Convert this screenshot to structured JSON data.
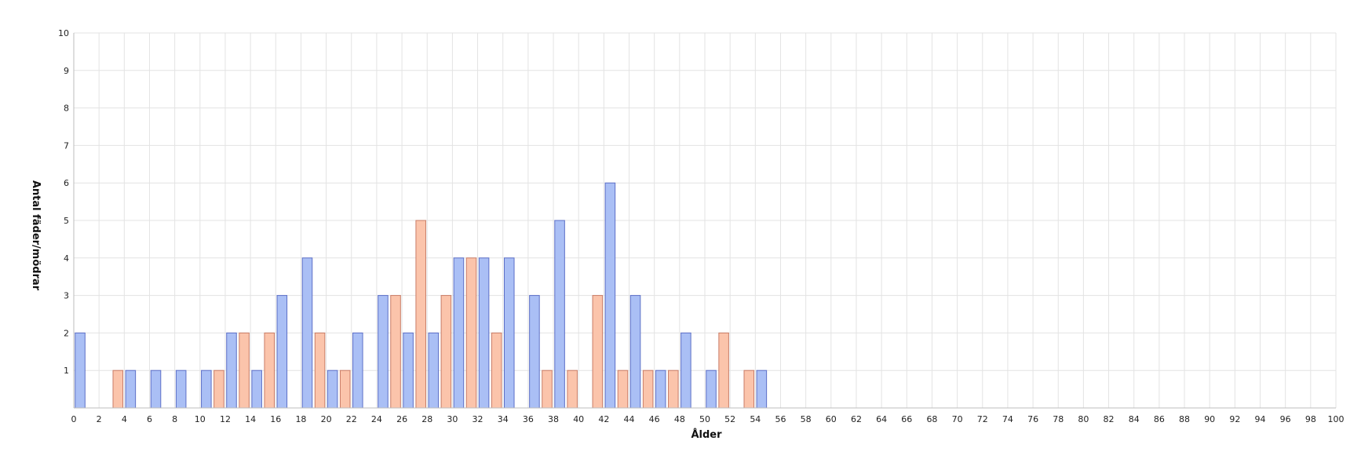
{
  "chart_data": {
    "type": "bar",
    "xlabel": "Ålder",
    "ylabel": "Antal fäder/mödrar",
    "xlim": [
      0,
      100
    ],
    "ylim": [
      0,
      10
    ],
    "x_ticks": [
      0,
      2,
      4,
      6,
      8,
      10,
      12,
      14,
      16,
      18,
      20,
      22,
      24,
      26,
      28,
      30,
      32,
      34,
      36,
      38,
      40,
      42,
      44,
      46,
      48,
      50,
      52,
      54,
      56,
      58,
      60,
      62,
      64,
      66,
      68,
      70,
      72,
      74,
      76,
      78,
      80,
      82,
      84,
      86,
      88,
      90,
      92,
      94,
      96,
      98,
      100
    ],
    "y_ticks": [
      1,
      2,
      3,
      4,
      5,
      6,
      7,
      8,
      9,
      10
    ],
    "grid": true,
    "series": [
      {
        "color": "#aabff5",
        "stroke": "#5c6fc7",
        "points": [
          {
            "x": 0,
            "y": 2
          },
          {
            "x": 4,
            "y": 1
          },
          {
            "x": 6,
            "y": 1
          },
          {
            "x": 8,
            "y": 1
          },
          {
            "x": 10,
            "y": 1
          },
          {
            "x": 12,
            "y": 2
          },
          {
            "x": 14,
            "y": 1
          },
          {
            "x": 16,
            "y": 3
          },
          {
            "x": 18,
            "y": 4
          },
          {
            "x": 20,
            "y": 1
          },
          {
            "x": 22,
            "y": 2
          },
          {
            "x": 24,
            "y": 3
          },
          {
            "x": 26,
            "y": 2
          },
          {
            "x": 28,
            "y": 2
          },
          {
            "x": 30,
            "y": 4
          },
          {
            "x": 32,
            "y": 4
          },
          {
            "x": 34,
            "y": 4
          },
          {
            "x": 36,
            "y": 3
          },
          {
            "x": 38,
            "y": 5
          },
          {
            "x": 42,
            "y": 6
          },
          {
            "x": 44,
            "y": 3
          },
          {
            "x": 46,
            "y": 1
          },
          {
            "x": 48,
            "y": 2
          },
          {
            "x": 50,
            "y": 1
          },
          {
            "x": 54,
            "y": 1
          }
        ]
      },
      {
        "color": "#fbc4ab",
        "stroke": "#c97c66",
        "points": [
          {
            "x": 3,
            "y": 1
          },
          {
            "x": 11,
            "y": 1
          },
          {
            "x": 13,
            "y": 2
          },
          {
            "x": 15,
            "y": 2
          },
          {
            "x": 19,
            "y": 2
          },
          {
            "x": 21,
            "y": 1
          },
          {
            "x": 25,
            "y": 3
          },
          {
            "x": 27,
            "y": 5
          },
          {
            "x": 29,
            "y": 3
          },
          {
            "x": 31,
            "y": 4
          },
          {
            "x": 33,
            "y": 2
          },
          {
            "x": 37,
            "y": 1
          },
          {
            "x": 39,
            "y": 1
          },
          {
            "x": 41,
            "y": 3
          },
          {
            "x": 43,
            "y": 1
          },
          {
            "x": 45,
            "y": 1
          },
          {
            "x": 47,
            "y": 1
          },
          {
            "x": 51,
            "y": 2
          },
          {
            "x": 53,
            "y": 1
          }
        ]
      }
    ]
  }
}
